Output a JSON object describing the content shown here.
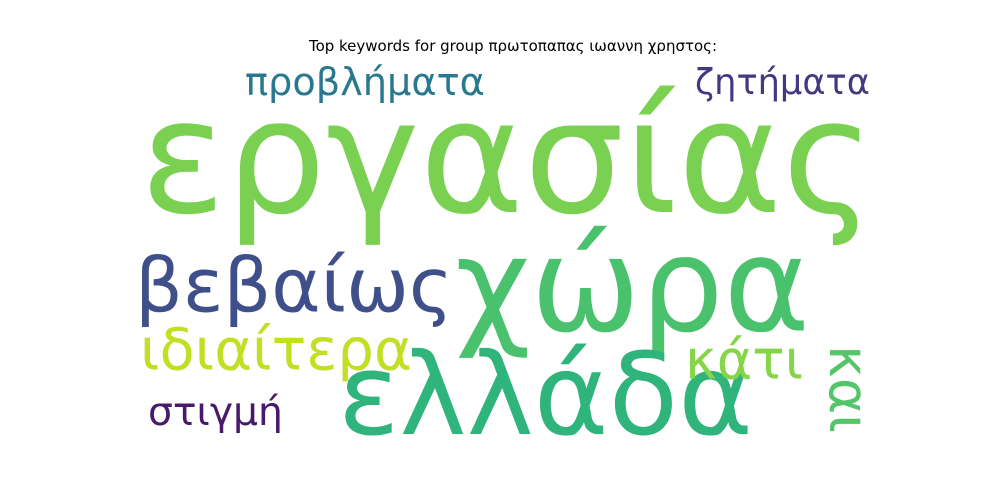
{
  "title": "Top keywords for group πρωτοπαπας ιωαννη χρηστος:",
  "chart_data": {
    "type": "wordcloud",
    "title": "Top keywords for group πρωτοπαπας ιωαννη χρηστος:",
    "words": [
      {
        "text": "εργασίας",
        "rank": 1,
        "color": "#7ad151",
        "orientation": "horizontal"
      },
      {
        "text": "χώρα",
        "rank": 2,
        "color": "#4ac16d",
        "orientation": "horizontal"
      },
      {
        "text": "ελλάδα",
        "rank": 3,
        "color": "#2fb47c",
        "orientation": "horizontal"
      },
      {
        "text": "βεβαίως",
        "rank": 4,
        "color": "#3e4f8a",
        "orientation": "horizontal"
      },
      {
        "text": "ιδιαίτερα",
        "rank": 5,
        "color": "#c2df23",
        "orientation": "horizontal"
      },
      {
        "text": "προβλήματα",
        "rank": 6,
        "color": "#2a788e",
        "orientation": "horizontal"
      },
      {
        "text": "ζητήματα",
        "rank": 7,
        "color": "#453882",
        "orientation": "horizontal"
      },
      {
        "text": "κάτι",
        "rank": 8,
        "color": "#86d549",
        "orientation": "horizontal"
      },
      {
        "text": "στιγμή",
        "rank": 9,
        "color": "#481a6c",
        "orientation": "horizontal"
      },
      {
        "text": "και",
        "rank": 10,
        "color": "#54c568",
        "orientation": "vertical"
      }
    ]
  }
}
